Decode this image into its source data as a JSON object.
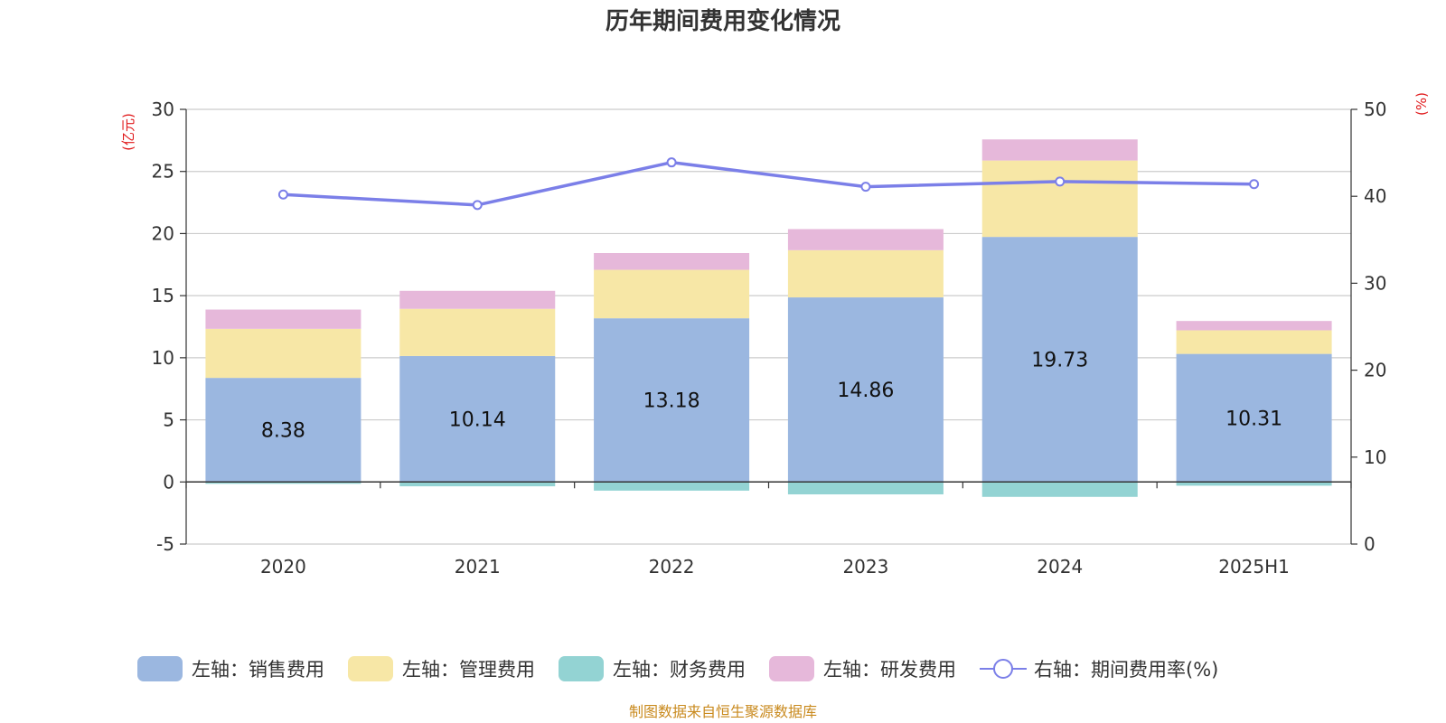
{
  "colors": {
    "sales": "#9bb7e0",
    "admin": "#f7e7a6",
    "finance": "#93d3d3",
    "rd": "#e6b8da",
    "rate_line": "#7b7fe8",
    "axis_unit": "#e0191b",
    "footer": "#c98a1e",
    "grid": "#cccccc",
    "axis": "#333333"
  },
  "chart_data": {
    "type": "bar",
    "title": "历年期间费用变化情况",
    "footer": "制图数据来自恒生聚源数据库",
    "categories": [
      "2020",
      "2021",
      "2022",
      "2023",
      "2024",
      "2025H1"
    ],
    "left_axis": {
      "unit": "(亿元)",
      "ylim": [
        -5,
        30
      ],
      "ticks": [
        "-5",
        "0",
        "5",
        "10",
        "15",
        "20",
        "25",
        "30"
      ]
    },
    "right_axis": {
      "unit": "(%)",
      "ylim": [
        0,
        50
      ],
      "ticks": [
        "0",
        "10",
        "20",
        "30",
        "40",
        "50"
      ]
    },
    "stacked": true,
    "grid": true,
    "legend_position": "bottom",
    "series": [
      {
        "key": "sales",
        "name": "左轴：销售费用",
        "type": "bar",
        "axis": "left",
        "values": [
          8.38,
          10.14,
          13.18,
          14.86,
          19.73,
          10.31
        ],
        "labels": [
          "8.38",
          "10.14",
          "13.18",
          "14.86",
          "19.73",
          "10.31"
        ]
      },
      {
        "key": "admin",
        "name": "左轴：管理费用",
        "type": "bar",
        "axis": "left",
        "values": [
          3.95,
          3.8,
          3.9,
          3.8,
          6.15,
          1.9
        ]
      },
      {
        "key": "finance",
        "name": "左轴：财务费用",
        "type": "bar",
        "axis": "left",
        "values": [
          -0.15,
          -0.35,
          -0.7,
          -1.0,
          -1.2,
          -0.3
        ]
      },
      {
        "key": "rd",
        "name": "左轴：研发费用",
        "type": "bar",
        "axis": "left",
        "values": [
          1.55,
          1.45,
          1.35,
          1.7,
          1.7,
          0.75
        ]
      },
      {
        "key": "rate",
        "name": "右轴：期间费用率(%)",
        "type": "line",
        "axis": "right",
        "values": [
          40.2,
          39.0,
          43.9,
          41.1,
          41.7,
          41.4
        ]
      }
    ]
  }
}
